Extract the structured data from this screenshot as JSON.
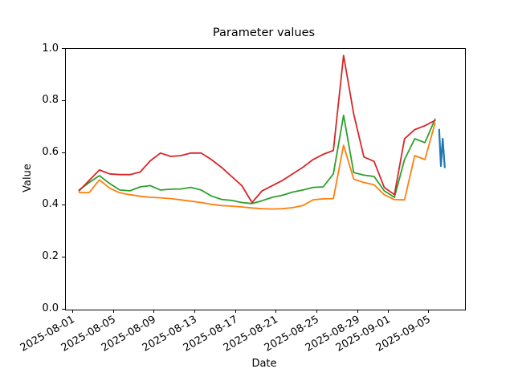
{
  "title": "Parameter values",
  "x_axis": {
    "label": "Date",
    "tick_labels": [
      "2025-08-01",
      "2025-08-05",
      "2025-08-09",
      "2025-08-13",
      "2025-08-17",
      "2025-08-21",
      "2025-08-25",
      "2025-08-29",
      "2025-09-01",
      "2025-09-05"
    ],
    "tick_day_offsets": [
      0,
      4,
      8,
      12,
      16,
      20,
      24,
      28,
      31,
      35
    ]
  },
  "y_axis": {
    "label": "Value",
    "tick_labels": [
      "0.0",
      "0.2",
      "0.4",
      "0.6",
      "0.8",
      "1.0"
    ],
    "tick_values": [
      0.0,
      0.2,
      0.4,
      0.6,
      0.8,
      1.0
    ]
  },
  "chart_data": {
    "type": "line",
    "title": "Parameter values",
    "xlabel": "Date",
    "ylabel": "Value",
    "ylim": [
      0.0,
      1.0
    ],
    "grid": false,
    "legend": "none",
    "x_dates": [
      "2025-08-01",
      "2025-08-02",
      "2025-08-03",
      "2025-08-04",
      "2025-08-05",
      "2025-08-06",
      "2025-08-07",
      "2025-08-08",
      "2025-08-09",
      "2025-08-10",
      "2025-08-11",
      "2025-08-12",
      "2025-08-13",
      "2025-08-14",
      "2025-08-15",
      "2025-08-16",
      "2025-08-17",
      "2025-08-18",
      "2025-08-19",
      "2025-08-20",
      "2025-08-21",
      "2025-08-22",
      "2025-08-23",
      "2025-08-24",
      "2025-08-25",
      "2025-08-26",
      "2025-08-27",
      "2025-08-28",
      "2025-08-29",
      "2025-08-30",
      "2025-08-31",
      "2025-09-01",
      "2025-09-02",
      "2025-09-03",
      "2025-09-04",
      "2025-09-05"
    ],
    "series": [
      {
        "name": "series-blue",
        "color": "#1f77b4",
        "note": "short sub-daily segment near 2025-09-06",
        "day_offsets": [
          35.95,
          36.12,
          36.3,
          36.5
        ],
        "values": [
          0.69,
          0.55,
          0.655,
          0.545
        ]
      },
      {
        "name": "series-orange",
        "color": "#ff7f0e",
        "values": [
          0.448,
          0.448,
          0.497,
          0.465,
          0.447,
          0.44,
          0.434,
          0.43,
          0.428,
          0.425,
          0.42,
          0.415,
          0.41,
          0.403,
          0.398,
          0.396,
          0.393,
          0.389,
          0.386,
          0.385,
          0.386,
          0.39,
          0.398,
          0.42,
          0.424,
          0.425,
          0.63,
          0.5,
          0.487,
          0.478,
          0.44,
          0.421,
          0.42,
          0.59,
          0.575,
          0.715
        ]
      },
      {
        "name": "series-green",
        "color": "#2ca02c",
        "values": [
          0.458,
          0.487,
          0.513,
          0.483,
          0.458,
          0.455,
          0.47,
          0.475,
          0.458,
          0.461,
          0.462,
          0.468,
          0.458,
          0.435,
          0.422,
          0.418,
          0.41,
          0.406,
          0.417,
          0.43,
          0.438,
          0.45,
          0.458,
          0.468,
          0.47,
          0.52,
          0.745,
          0.525,
          0.515,
          0.51,
          0.455,
          0.43,
          0.575,
          0.655,
          0.64,
          0.73
        ]
      },
      {
        "name": "series-red",
        "color": "#d62728",
        "values": [
          0.455,
          0.495,
          0.535,
          0.52,
          0.517,
          0.517,
          0.527,
          0.57,
          0.6,
          0.587,
          0.59,
          0.6,
          0.6,
          0.575,
          0.545,
          0.51,
          0.475,
          0.41,
          0.455,
          0.475,
          0.495,
          0.52,
          0.545,
          0.575,
          0.595,
          0.61,
          0.975,
          0.75,
          0.585,
          0.568,
          0.468,
          0.44,
          0.655,
          0.69,
          0.705,
          0.725
        ]
      }
    ]
  }
}
